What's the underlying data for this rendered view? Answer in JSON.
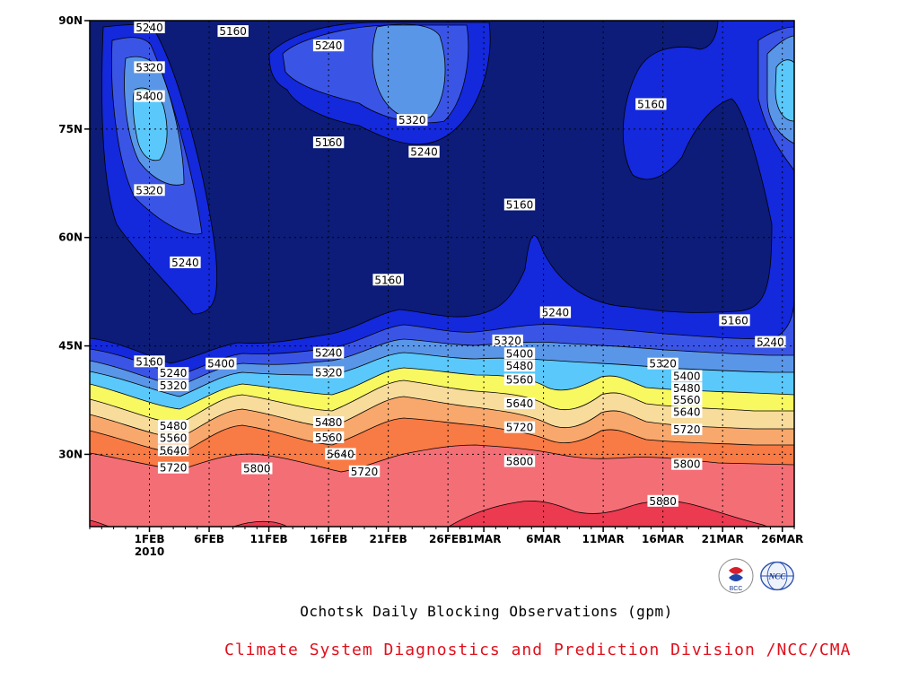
{
  "chart_data": {
    "type": "contour",
    "title": "Ochotsk Daily Blocking Observations (gpm)",
    "credit": "Climate System Diagnostics and Prediction Division /NCC/CMA",
    "x_axis": {
      "ticks": [
        "1FEB",
        "6FEB",
        "11FEB",
        "16FEB",
        "21FEB",
        "26FEB",
        "1MAR",
        "6MAR",
        "11MAR",
        "16MAR",
        "21MAR",
        "26MAR"
      ],
      "year_label": "2010",
      "range": [
        "2010-01-27",
        "2010-03-27"
      ]
    },
    "y_axis": {
      "ticks": [
        "30N",
        "45N",
        "60N",
        "75N",
        "90N"
      ],
      "range": [
        20,
        90
      ],
      "unit": "latitude"
    },
    "levels": [
      5160,
      5240,
      5320,
      5400,
      5480,
      5560,
      5640,
      5720,
      5800,
      5880
    ],
    "fill_colors": [
      "#0c1c78",
      "#1428dc",
      "#3a55e6",
      "#5a96e8",
      "#5ac8fa",
      "#f8f860",
      "#f8dc9c",
      "#f8a86c",
      "#f87a44",
      "#f46e76",
      "#ec3a50"
    ],
    "contour_labels": [
      {
        "value": "5240",
        "date": "2010-02-01",
        "lat": 89
      },
      {
        "value": "5320",
        "date": "2010-02-01",
        "lat": 83.5
      },
      {
        "value": "5400",
        "date": "2010-02-01",
        "lat": 79.5
      },
      {
        "value": "5320",
        "date": "2010-02-01",
        "lat": 66.5
      },
      {
        "value": "5240",
        "date": "2010-02-04",
        "lat": 56.5
      },
      {
        "value": "5160",
        "date": "2010-02-08",
        "lat": 88.5
      },
      {
        "value": "5240",
        "date": "2010-02-16",
        "lat": 86.5
      },
      {
        "value": "5320",
        "date": "2010-02-23",
        "lat": 76.2
      },
      {
        "value": "5240",
        "date": "2010-02-24",
        "lat": 71.8
      },
      {
        "value": "5160",
        "date": "2010-02-16",
        "lat": 73.1
      },
      {
        "value": "5160",
        "date": "2010-02-21",
        "lat": 54.1
      },
      {
        "value": "5160",
        "date": "2010-03-04",
        "lat": 64.5
      },
      {
        "value": "5160",
        "date": "2010-03-15",
        "lat": 78.4
      },
      {
        "value": "5240",
        "date": "2010-03-07",
        "lat": 49.6
      },
      {
        "value": "5160",
        "date": "2010-03-22",
        "lat": 48.5
      },
      {
        "value": "5240",
        "date": "2010-03-25",
        "lat": 45.5
      },
      {
        "value": "5160",
        "date": "2010-02-01",
        "lat": 42.8
      },
      {
        "value": "5240",
        "date": "2010-02-03",
        "lat": 41.2
      },
      {
        "value": "5320",
        "date": "2010-02-03",
        "lat": 39.5
      },
      {
        "value": "5400",
        "date": "2010-02-07",
        "lat": 42.5
      },
      {
        "value": "5240",
        "date": "2010-02-16",
        "lat": 44.0
      },
      {
        "value": "5320",
        "date": "2010-02-16",
        "lat": 41.3
      },
      {
        "value": "5320",
        "date": "2010-03-03",
        "lat": 45.7
      },
      {
        "value": "5400",
        "date": "2010-03-04",
        "lat": 43.9
      },
      {
        "value": "5480",
        "date": "2010-03-04",
        "lat": 42.2
      },
      {
        "value": "5560",
        "date": "2010-03-04",
        "lat": 40.3
      },
      {
        "value": "5640",
        "date": "2010-03-04",
        "lat": 37.0
      },
      {
        "value": "5720",
        "date": "2010-03-04",
        "lat": 33.7
      },
      {
        "value": "5800",
        "date": "2010-03-04",
        "lat": 29.0
      },
      {
        "value": "5320",
        "date": "2010-03-16",
        "lat": 42.5
      },
      {
        "value": "5400",
        "date": "2010-03-18",
        "lat": 40.8
      },
      {
        "value": "5480",
        "date": "2010-03-18",
        "lat": 39.1
      },
      {
        "value": "5560",
        "date": "2010-03-18",
        "lat": 37.5
      },
      {
        "value": "5640",
        "date": "2010-03-18",
        "lat": 35.8
      },
      {
        "value": "5720",
        "date": "2010-03-18",
        "lat": 33.4
      },
      {
        "value": "5800",
        "date": "2010-03-18",
        "lat": 28.6
      },
      {
        "value": "5880",
        "date": "2010-03-16",
        "lat": 23.5
      },
      {
        "value": "5480",
        "date": "2010-02-03",
        "lat": 33.9
      },
      {
        "value": "5560",
        "date": "2010-02-03",
        "lat": 32.2
      },
      {
        "value": "5640",
        "date": "2010-02-03",
        "lat": 30.5
      },
      {
        "value": "5720",
        "date": "2010-02-03",
        "lat": 28.1
      },
      {
        "value": "5800",
        "date": "2010-02-10",
        "lat": 28.0
      },
      {
        "value": "5480",
        "date": "2010-02-16",
        "lat": 34.4
      },
      {
        "value": "5560",
        "date": "2010-02-16",
        "lat": 32.3
      },
      {
        "value": "5640",
        "date": "2010-02-17",
        "lat": 30.0
      },
      {
        "value": "5720",
        "date": "2010-02-19",
        "lat": 27.6
      }
    ],
    "grid": false
  },
  "logos": {
    "bcc_label": "BCC",
    "ncc_label": "NCC"
  }
}
